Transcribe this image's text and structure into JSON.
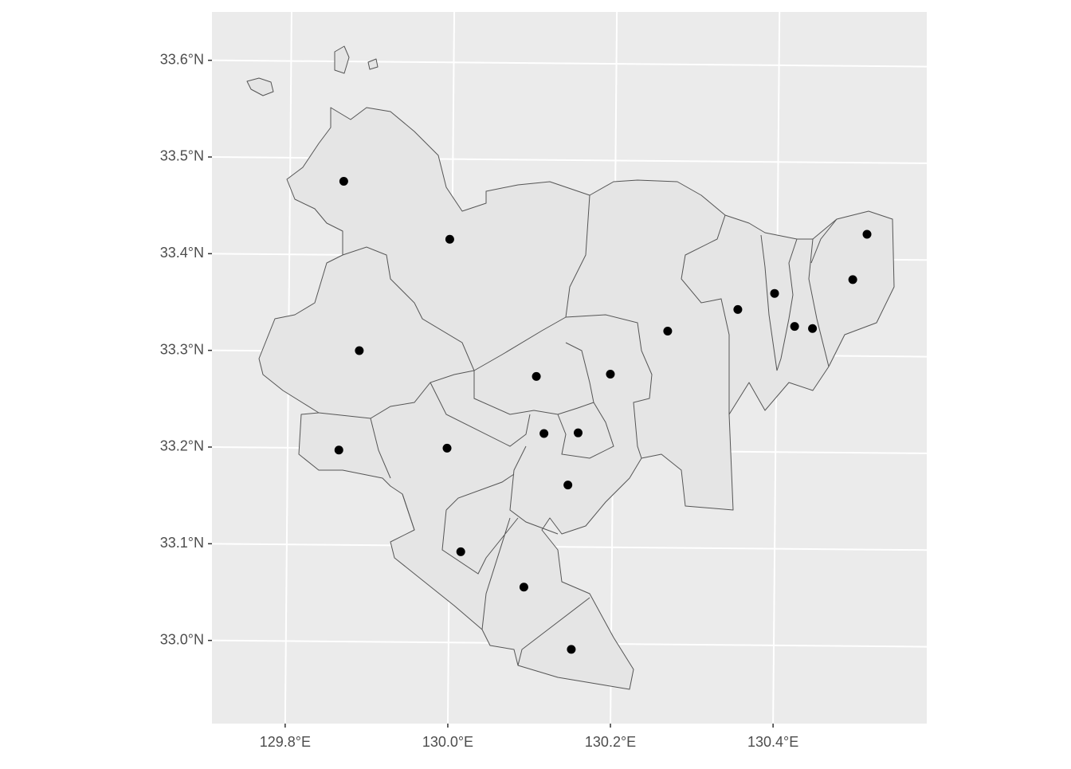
{
  "chart_data": {
    "type": "map",
    "xlim": [
      129.71,
      130.589
    ],
    "ylim": [
      32.914,
      33.65
    ],
    "xticks": [
      {
        "value": 129.8,
        "label": "129.8°E"
      },
      {
        "value": 130.0,
        "label": "130.0°E"
      },
      {
        "value": 130.2,
        "label": "130.2°E"
      },
      {
        "value": 130.4,
        "label": "130.4°E"
      }
    ],
    "yticks": [
      {
        "value": 33.0,
        "label": "33.0°N"
      },
      {
        "value": 33.1,
        "label": "33.1°N"
      },
      {
        "value": 33.2,
        "label": "33.2°N"
      },
      {
        "value": 33.3,
        "label": "33.3°N"
      },
      {
        "value": 33.4,
        "label": "33.4°N"
      },
      {
        "value": 33.5,
        "label": "33.5°N"
      },
      {
        "value": 33.6,
        "label": "33.6°N"
      }
    ],
    "grid": true,
    "color": "#000000",
    "points": {
      "lon": [
        129.866,
        129.997,
        129.887,
        129.863,
        129.996,
        130.105,
        130.196,
        130.115,
        130.157,
        130.145,
        130.014,
        130.092,
        130.151,
        130.266,
        130.352,
        130.397,
        130.422,
        130.444,
        130.493,
        130.51
      ],
      "lat": [
        33.476,
        33.417,
        33.301,
        33.198,
        33.201,
        33.276,
        33.279,
        33.217,
        33.218,
        33.164,
        33.094,
        33.058,
        32.994,
        33.324,
        33.347,
        33.364,
        33.33,
        33.328,
        33.379,
        33.426
      ]
    }
  }
}
